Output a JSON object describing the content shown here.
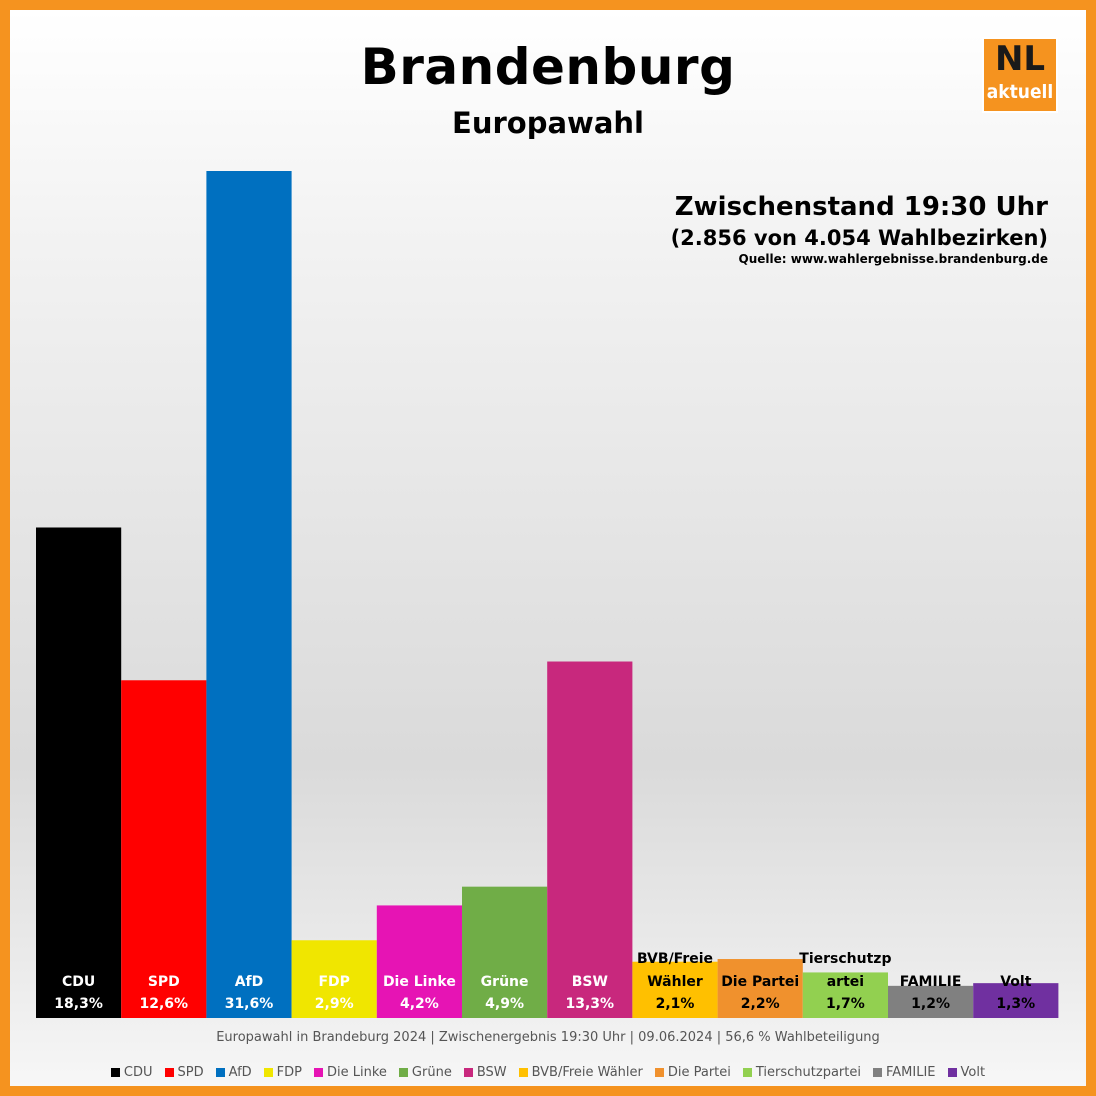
{
  "header": {
    "title": "Brandenburg",
    "subtitle": "Europawahl",
    "status": "Zwischenstand 19:30 Uhr",
    "districts": "(2.856 von 4.054 Wahlbezirken)",
    "source": "Quelle:  www.wahlergebnisse.brandenburg.de"
  },
  "logo": {
    "main": "NL",
    "sub": "aktuell",
    "color": "#f5931f"
  },
  "footer": {
    "note": "Europawahl in Brandeburg 2024 | Zwischenergebnis 19:30 Uhr | 09.06.2024 | 56,6 % Wahlbeteiligung"
  },
  "chart_data": {
    "type": "bar",
    "categories": [
      "CDU",
      "SPD",
      "AfD",
      "FDP",
      "Die Linke",
      "Grüne",
      "BSW",
      "BVB/Freie Wähler",
      "Die Partei",
      "Tierschutzpartei",
      "FAMILIE",
      "Volt"
    ],
    "bar_labels": [
      [
        "CDU"
      ],
      [
        "SPD"
      ],
      [
        "AfD"
      ],
      [
        "FDP"
      ],
      [
        "Die Linke"
      ],
      [
        "Grüne"
      ],
      [
        "BSW"
      ],
      [
        "BVB/Freie",
        "Wähler"
      ],
      [
        "Die Partei"
      ],
      [
        "Tierschutzp",
        "artei"
      ],
      [
        "FAMILIE"
      ],
      [
        "Volt"
      ]
    ],
    "values": [
      18.3,
      12.6,
      31.6,
      2.9,
      4.2,
      4.9,
      13.3,
      2.1,
      2.2,
      1.7,
      1.2,
      1.3
    ],
    "value_labels": [
      "18,3%",
      "12,6%",
      "31,6%",
      "2,9%",
      "4,2%",
      "4,9%",
      "13,3%",
      "2,1%",
      "2,2%",
      "1,7%",
      "1,2%",
      "1,3%"
    ],
    "colors": [
      "#000000",
      "#ff0000",
      "#0070c0",
      "#f0e600",
      "#e614b4",
      "#70ad47",
      "#c8287d",
      "#ffc000",
      "#f0912d",
      "#92d050",
      "#808080",
      "#7030a0"
    ],
    "label_colors": [
      "#ffffff",
      "#ffffff",
      "#ffffff",
      "#ffffff",
      "#ffffff",
      "#ffffff",
      "#ffffff",
      "#000000",
      "#000000",
      "#000000",
      "#000000",
      "#000000"
    ],
    "ylim": [
      0,
      31.6
    ],
    "grid": false,
    "legend_position": "bottom"
  }
}
